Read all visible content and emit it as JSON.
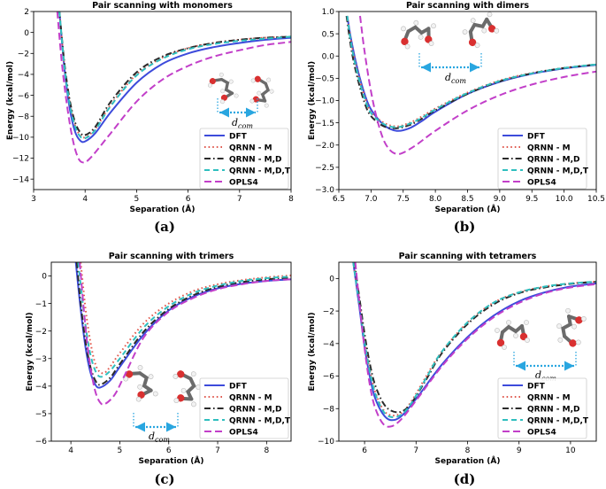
{
  "captions": [
    "(a)",
    "(b)",
    "(c)",
    "(d)"
  ],
  "legend_entries": [
    {
      "key": "dft",
      "label": "DFT",
      "color": "#3d4bdb",
      "dash": "solid"
    },
    {
      "key": "m",
      "label": "QRNN - M",
      "color": "#e05a4f",
      "dash": "dot"
    },
    {
      "key": "md",
      "label": "QRNN - M,D",
      "color": "#2b2b2b",
      "dash": "dashdot"
    },
    {
      "key": "mdt",
      "label": "QRNN - M,D,T",
      "color": "#2fbfbf",
      "dash": "dash"
    },
    {
      "key": "opls",
      "label": "OPLS4",
      "color": "#c23fc9",
      "dash": "longdash"
    }
  ],
  "chart_data": [
    {
      "type": "line",
      "title": "Pair scanning with monomers",
      "xlabel": "Separation (Å)",
      "ylabel": "Energy (kcal/mol)",
      "xlim": [
        3,
        8
      ],
      "ylim": [
        -15,
        2
      ],
      "xticks": [
        3,
        4,
        5,
        6,
        7,
        8
      ],
      "xtick_labels": [
        "3",
        "4",
        "5",
        "6",
        "7",
        "8"
      ],
      "yticks": [
        -14,
        -12,
        -10,
        -8,
        -6,
        -4,
        -2,
        0,
        2
      ],
      "ytick_labels": [
        "−14",
        "−12",
        "−10",
        "−8",
        "−6",
        "−4",
        "−2",
        "0",
        "2"
      ],
      "annotation": "d_com",
      "series": [
        {
          "name": "DFT",
          "x": [
            3.5,
            3.6,
            3.7,
            3.8,
            3.9,
            4.0,
            4.2,
            4.5,
            5.0,
            5.5,
            6.0,
            6.5,
            7.0,
            7.5,
            8.0
          ],
          "y": [
            2.0,
            -3.5,
            -7.2,
            -9.4,
            -10.3,
            -10.4,
            -9.6,
            -7.6,
            -4.8,
            -3.0,
            -2.0,
            -1.4,
            -1.0,
            -0.7,
            -0.5
          ]
        },
        {
          "name": "QRNN - M",
          "x": [
            3.5,
            3.6,
            3.7,
            3.8,
            3.9,
            4.0,
            4.2,
            4.5,
            5.0,
            5.5,
            6.0,
            6.5,
            7.0,
            7.5,
            8.0
          ],
          "y": [
            2.0,
            -3.2,
            -6.6,
            -8.8,
            -9.8,
            -10.0,
            -9.2,
            -6.9,
            -4.0,
            -2.4,
            -1.5,
            -1.0,
            -0.7,
            -0.5,
            -0.4
          ]
        },
        {
          "name": "QRNN - M,D",
          "x": [
            3.5,
            3.6,
            3.7,
            3.8,
            3.9,
            4.0,
            4.2,
            4.5,
            5.0,
            5.5,
            6.0,
            6.5,
            7.0,
            7.5,
            8.0
          ],
          "y": [
            2.0,
            -3.0,
            -6.4,
            -8.5,
            -9.5,
            -9.8,
            -9.0,
            -6.6,
            -3.8,
            -2.3,
            -1.5,
            -1.0,
            -0.7,
            -0.5,
            -0.4
          ]
        },
        {
          "name": "QRNN - M,D,T",
          "x": [
            3.5,
            3.6,
            3.7,
            3.8,
            3.9,
            4.0,
            4.2,
            4.5,
            5.0,
            5.5,
            6.0,
            6.5,
            7.0,
            7.5,
            8.0
          ],
          "y": [
            2.0,
            -3.3,
            -6.8,
            -8.9,
            -9.9,
            -10.1,
            -9.3,
            -7.0,
            -4.1,
            -2.5,
            -1.6,
            -1.1,
            -0.8,
            -0.6,
            -0.4
          ]
        },
        {
          "name": "OPLS4",
          "x": [
            3.46,
            3.55,
            3.65,
            3.75,
            3.85,
            3.95,
            4.1,
            4.5,
            5.0,
            5.5,
            6.0,
            6.5,
            7.0,
            7.5,
            8.0
          ],
          "y": [
            2.0,
            -3.0,
            -7.0,
            -10.0,
            -11.8,
            -12.4,
            -12.0,
            -9.6,
            -6.6,
            -4.5,
            -3.2,
            -2.3,
            -1.7,
            -1.2,
            -0.9
          ]
        }
      ]
    },
    {
      "type": "line",
      "title": "Pair scanning with dimers",
      "xlabel": "Separation (Å)",
      "ylabel": "Energy (kcal/mol)",
      "xlim": [
        6.5,
        10.5
      ],
      "ylim": [
        -3.0,
        1.0
      ],
      "xticks": [
        6.5,
        7.0,
        7.5,
        8.0,
        8.5,
        9.0,
        9.5,
        10.0,
        10.5
      ],
      "xtick_labels": [
        "6.5",
        "7.0",
        "7.5",
        "8.0",
        "8.5",
        "9.0",
        "9.5",
        "10.0",
        "10.5"
      ],
      "yticks": [
        -3.0,
        -2.5,
        -2.0,
        -1.5,
        -1.0,
        -0.5,
        0.0,
        0.5,
        1.0
      ],
      "ytick_labels": [
        "−3.0",
        "−2.5",
        "−2.0",
        "−1.5",
        "−1.0",
        "−0.5",
        "0.0",
        "0.5",
        "1.0"
      ],
      "annotation": "d_com",
      "series": [
        {
          "name": "DFT",
          "x": [
            6.63,
            6.7,
            6.8,
            6.9,
            7.0,
            7.2,
            7.4,
            7.6,
            7.8,
            8.0,
            8.5,
            9.0,
            9.5,
            10.0,
            10.5
          ],
          "y": [
            0.9,
            0.3,
            -0.35,
            -0.85,
            -1.2,
            -1.55,
            -1.68,
            -1.62,
            -1.45,
            -1.25,
            -0.85,
            -0.58,
            -0.4,
            -0.28,
            -0.2
          ]
        },
        {
          "name": "QRNN - M",
          "x": [
            6.63,
            6.7,
            6.8,
            6.9,
            7.0,
            7.2,
            7.4,
            7.6,
            7.8,
            8.0,
            8.5,
            9.0,
            9.5,
            10.0,
            10.5
          ],
          "y": [
            0.9,
            0.25,
            -0.4,
            -0.9,
            -1.25,
            -1.5,
            -1.58,
            -1.5,
            -1.35,
            -1.18,
            -0.82,
            -0.55,
            -0.38,
            -0.27,
            -0.19
          ]
        },
        {
          "name": "QRNN - M,D",
          "x": [
            6.62,
            6.7,
            6.8,
            6.9,
            7.0,
            7.2,
            7.4,
            7.6,
            7.8,
            8.0,
            8.5,
            9.0,
            9.5,
            10.0,
            10.5
          ],
          "y": [
            0.9,
            0.1,
            -0.55,
            -1.05,
            -1.35,
            -1.58,
            -1.62,
            -1.55,
            -1.4,
            -1.22,
            -0.85,
            -0.57,
            -0.39,
            -0.27,
            -0.19
          ]
        },
        {
          "name": "QRNN - M,D,T",
          "x": [
            6.63,
            6.7,
            6.8,
            6.9,
            7.0,
            7.2,
            7.4,
            7.6,
            7.8,
            8.0,
            8.5,
            9.0,
            9.5,
            10.0,
            10.5
          ],
          "y": [
            0.9,
            0.2,
            -0.45,
            -0.95,
            -1.28,
            -1.53,
            -1.6,
            -1.52,
            -1.38,
            -1.2,
            -0.83,
            -0.56,
            -0.39,
            -0.27,
            -0.19
          ]
        },
        {
          "name": "OPLS4",
          "x": [
            6.83,
            6.9,
            7.0,
            7.1,
            7.2,
            7.3,
            7.4,
            7.5,
            7.7,
            8.0,
            8.5,
            9.0,
            9.5,
            10.0,
            10.5
          ],
          "y": [
            0.9,
            0.1,
            -0.8,
            -1.45,
            -1.9,
            -2.12,
            -2.2,
            -2.17,
            -2.0,
            -1.68,
            -1.22,
            -0.88,
            -0.64,
            -0.47,
            -0.35
          ]
        }
      ]
    },
    {
      "type": "line",
      "title": "Pair scanning with trimers",
      "xlabel": "Separation (Å)",
      "ylabel": "Energy (kcal/mol)",
      "xlim": [
        3.6,
        8.5
      ],
      "ylim": [
        -6,
        0.5
      ],
      "xticks": [
        4,
        5,
        6,
        7,
        8
      ],
      "xtick_labels": [
        "4",
        "5",
        "6",
        "7",
        "8"
      ],
      "yticks": [
        -6,
        -5,
        -4,
        -3,
        -2,
        -1,
        0
      ],
      "ytick_labels": [
        "−6",
        "−5",
        "−4",
        "−3",
        "−2",
        "−1",
        "0"
      ],
      "annotation": "d_com",
      "series": [
        {
          "name": "DFT",
          "x": [
            4.1,
            4.2,
            4.3,
            4.4,
            4.5,
            4.6,
            4.8,
            5.0,
            5.5,
            6.0,
            6.5,
            7.0,
            7.5,
            8.0,
            8.5
          ],
          "y": [
            0.5,
            -1.2,
            -2.6,
            -3.5,
            -3.95,
            -4.05,
            -3.8,
            -3.3,
            -2.1,
            -1.25,
            -0.75,
            -0.45,
            -0.28,
            -0.18,
            -0.12
          ]
        },
        {
          "name": "QRNN - M",
          "x": [
            4.2,
            4.3,
            4.4,
            4.5,
            4.6,
            4.7,
            4.8,
            5.0,
            5.5,
            6.0,
            6.5,
            7.0,
            7.5,
            8.0,
            8.5
          ],
          "y": [
            0.5,
            -1.2,
            -2.4,
            -3.2,
            -3.5,
            -3.5,
            -3.3,
            -2.8,
            -1.7,
            -1.0,
            -0.55,
            -0.3,
            -0.15,
            -0.05,
            0.02
          ]
        },
        {
          "name": "QRNN - M,D",
          "x": [
            4.12,
            4.2,
            4.3,
            4.4,
            4.5,
            4.6,
            4.8,
            5.0,
            5.5,
            6.0,
            6.5,
            7.0,
            7.5,
            8.0,
            8.5
          ],
          "y": [
            0.5,
            -1.0,
            -2.4,
            -3.3,
            -3.8,
            -3.95,
            -3.7,
            -3.2,
            -2.0,
            -1.2,
            -0.7,
            -0.4,
            -0.22,
            -0.12,
            -0.06
          ]
        },
        {
          "name": "QRNN - M,D,T",
          "x": [
            4.15,
            4.25,
            4.35,
            4.45,
            4.55,
            4.65,
            4.8,
            5.0,
            5.5,
            6.0,
            6.5,
            7.0,
            7.5,
            8.0,
            8.5
          ],
          "y": [
            0.5,
            -1.1,
            -2.4,
            -3.2,
            -3.6,
            -3.65,
            -3.45,
            -3.0,
            -1.85,
            -1.1,
            -0.62,
            -0.35,
            -0.18,
            -0.08,
            -0.02
          ]
        },
        {
          "name": "OPLS4",
          "x": [
            4.18,
            4.3,
            4.4,
            4.5,
            4.6,
            4.7,
            4.9,
            5.1,
            5.5,
            6.0,
            6.5,
            7.0,
            7.5,
            8.0,
            8.5
          ],
          "y": [
            0.5,
            -1.9,
            -3.3,
            -4.2,
            -4.6,
            -4.65,
            -4.3,
            -3.6,
            -2.2,
            -1.3,
            -0.8,
            -0.48,
            -0.3,
            -0.18,
            -0.12
          ]
        }
      ]
    },
    {
      "type": "line",
      "title": "Pair scanning with tetramers",
      "xlabel": "Separation (Å)",
      "ylabel": "Energy (kcal/mol)",
      "xlim": [
        5.5,
        10.5
      ],
      "ylim": [
        -10,
        1
      ],
      "xticks": [
        6,
        7,
        8,
        9,
        10
      ],
      "xtick_labels": [
        "6",
        "7",
        "8",
        "9",
        "10"
      ],
      "yticks": [
        -10,
        -8,
        -6,
        -4,
        -2,
        0
      ],
      "ytick_labels": [
        "−10",
        "−8",
        "−6",
        "−4",
        "−2",
        "0"
      ],
      "annotation": "d_com",
      "series": [
        {
          "name": "DFT",
          "x": [
            5.78,
            5.9,
            6.0,
            6.1,
            6.2,
            6.35,
            6.5,
            6.7,
            7.0,
            7.5,
            8.0,
            8.5,
            9.0,
            9.5,
            10.0,
            10.5
          ],
          "y": [
            1.0,
            -1.8,
            -4.2,
            -6.0,
            -7.3,
            -8.3,
            -8.7,
            -8.5,
            -7.4,
            -5.3,
            -3.6,
            -2.3,
            -1.4,
            -0.85,
            -0.5,
            -0.3
          ]
        },
        {
          "name": "QRNN - M",
          "x": [
            5.78,
            5.9,
            6.0,
            6.1,
            6.2,
            6.35,
            6.5,
            6.7,
            6.9,
            7.2,
            7.5,
            8.0,
            8.5,
            9.0,
            9.5,
            10.0,
            10.5
          ],
          "y": [
            1.0,
            -1.5,
            -3.8,
            -5.6,
            -6.9,
            -8.0,
            -8.4,
            -8.3,
            -7.6,
            -6.0,
            -4.5,
            -2.7,
            -1.5,
            -0.85,
            -0.5,
            -0.3,
            -0.2
          ]
        },
        {
          "name": "QRNN - M,D",
          "x": [
            5.8,
            5.9,
            6.0,
            6.1,
            6.2,
            6.35,
            6.5,
            6.7,
            6.9,
            7.2,
            7.5,
            8.0,
            8.5,
            9.0,
            9.5,
            10.0,
            10.5
          ],
          "y": [
            1.0,
            -1.2,
            -3.4,
            -5.2,
            -6.5,
            -7.6,
            -8.1,
            -8.2,
            -7.7,
            -6.2,
            -4.6,
            -2.8,
            -1.6,
            -0.9,
            -0.55,
            -0.33,
            -0.2
          ]
        },
        {
          "name": "QRNN - M,D,T",
          "x": [
            5.78,
            5.9,
            6.0,
            6.1,
            6.2,
            6.35,
            6.5,
            6.7,
            6.9,
            7.2,
            7.5,
            8.0,
            8.5,
            9.0,
            9.5,
            10.0,
            10.5
          ],
          "y": [
            1.0,
            -1.6,
            -3.9,
            -5.7,
            -7.0,
            -8.1,
            -8.5,
            -8.4,
            -7.7,
            -6.1,
            -4.5,
            -2.7,
            -1.5,
            -0.85,
            -0.5,
            -0.3,
            -0.2
          ]
        },
        {
          "name": "OPLS4",
          "x": [
            5.82,
            5.9,
            6.0,
            6.1,
            6.2,
            6.35,
            6.5,
            6.7,
            7.0,
            7.5,
            8.0,
            8.5,
            9.0,
            9.5,
            10.0,
            10.5
          ],
          "y": [
            1.0,
            -1.5,
            -4.3,
            -6.5,
            -7.9,
            -8.9,
            -9.1,
            -8.7,
            -7.5,
            -5.4,
            -3.7,
            -2.4,
            -1.5,
            -0.9,
            -0.55,
            -0.35
          ]
        }
      ]
    }
  ]
}
